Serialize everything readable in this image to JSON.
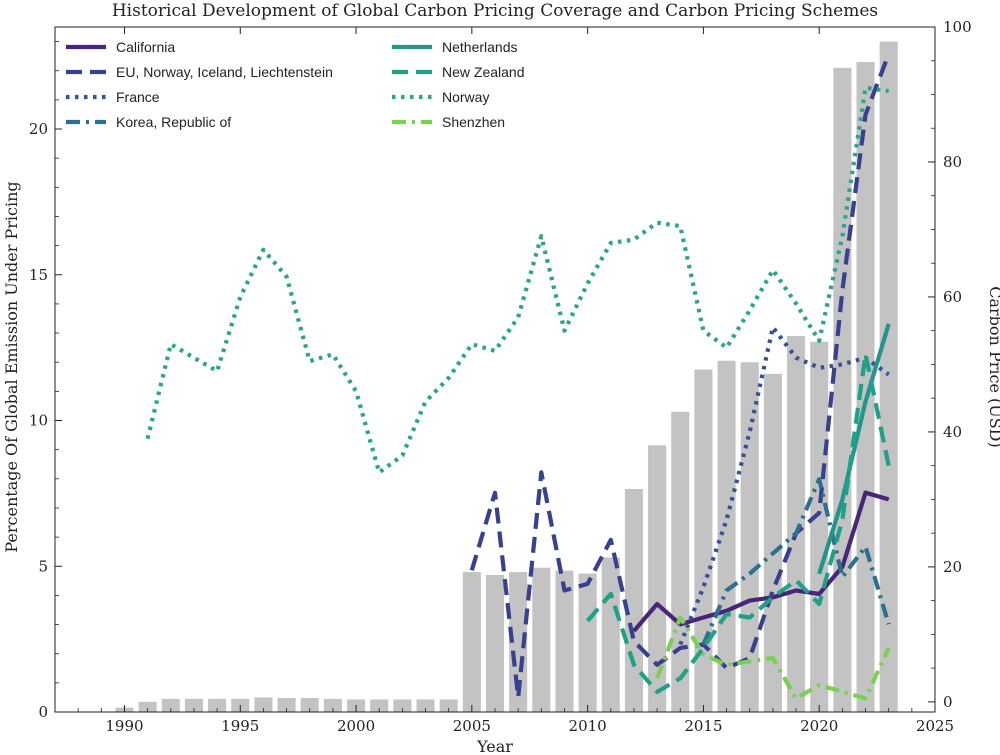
{
  "chart_data": {
    "type": "bar+line",
    "title": "Historical Development of Global Carbon Pricing Coverage and Carbon Pricing Schemes",
    "xlabel": "Year",
    "ylabel_left": "Percentage Of Global Emission Under Pricing",
    "ylabel_right": "Carbon Price (USD)",
    "xlim": [
      1987,
      2025
    ],
    "ylim_left": [
      0,
      23.5
    ],
    "ylim_right": [
      -1.5,
      100
    ],
    "x_ticks": [
      "1990",
      "1995",
      "2000",
      "2005",
      "2010",
      "2015",
      "2020",
      "2025"
    ],
    "y_ticks_left": [
      "0",
      "5",
      "10",
      "15",
      "20"
    ],
    "y_ticks_right": [
      "0",
      "20",
      "40",
      "60",
      "80",
      "100"
    ],
    "legend_position": "top-left",
    "coverage_bars": {
      "years": [
        1990,
        1991,
        1992,
        1993,
        1994,
        1995,
        1996,
        1997,
        1998,
        1999,
        2000,
        2001,
        2002,
        2003,
        2004,
        2005,
        2006,
        2007,
        2008,
        2009,
        2010,
        2011,
        2012,
        2013,
        2014,
        2015,
        2016,
        2017,
        2018,
        2019,
        2020,
        2021,
        2022,
        2023
      ],
      "values": [
        0.15,
        0.35,
        0.45,
        0.45,
        0.45,
        0.45,
        0.5,
        0.48,
        0.48,
        0.45,
        0.43,
        0.43,
        0.43,
        0.43,
        0.43,
        4.8,
        4.7,
        4.8,
        4.95,
        4.85,
        4.75,
        5.3,
        7.65,
        9.15,
        10.3,
        11.75,
        12.05,
        12.0,
        11.6,
        12.9,
        12.7,
        22.1,
        22.3,
        23.0
      ]
    },
    "series": [
      {
        "name": "California",
        "color": "#482576",
        "dash": "solid",
        "years": [
          2012,
          2013,
          2014,
          2015,
          2016,
          2017,
          2018,
          2019,
          2020,
          2021,
          2022,
          2023
        ],
        "values": [
          10.5,
          14.5,
          11.5,
          12.5,
          13.5,
          15.0,
          15.5,
          16.5,
          16.0,
          20.0,
          31.0,
          30.0
        ]
      },
      {
        "name": "EU, Norway, Iceland, Liechtenstein",
        "color": "#39418f",
        "dash": "long-dash",
        "years": [
          2005,
          2006,
          2007,
          2008,
          2009,
          2010,
          2011,
          2012,
          2013,
          2014,
          2015,
          2016,
          2017,
          2018,
          2019,
          2020,
          2021,
          2022,
          2023
        ],
        "values": [
          19.5,
          31.0,
          0.7,
          34.0,
          16.5,
          17.5,
          24.0,
          9.0,
          5.5,
          8.0,
          8.5,
          5.0,
          6.5,
          16.5,
          25.0,
          28.0,
          61.0,
          87.0,
          96.0
        ]
      },
      {
        "name": "France",
        "color": "#3b4e99",
        "dash": "dotted",
        "years": [
          2014,
          2015,
          2016,
          2017,
          2018,
          2019,
          2020,
          2021,
          2022,
          2023
        ],
        "values": [
          8.5,
          17.0,
          27.0,
          40.0,
          55.5,
          51.0,
          49.5,
          50.0,
          51.0,
          48.5
        ]
      },
      {
        "name": "Korea, Republic of",
        "color": "#2c6f8e",
        "dash": "dash-dot",
        "years": [
          2015,
          2016,
          2017,
          2018,
          2019,
          2020,
          2021,
          2022,
          2023
        ],
        "values": [
          8.5,
          16.5,
          19.0,
          22.0,
          25.0,
          33.0,
          18.5,
          23.0,
          11.5
        ]
      },
      {
        "name": "Netherlands",
        "color": "#22968b",
        "dash": "solid",
        "years": [
          2020,
          2021,
          2022,
          2023
        ],
        "values": [
          19.0,
          30.0,
          44.5,
          56.0
        ]
      },
      {
        "name": "New Zealand",
        "color": "#1fa187",
        "dash": "long-dash",
        "years": [
          2010,
          2011,
          2012,
          2013,
          2014,
          2015,
          2016,
          2017,
          2018,
          2019,
          2020,
          2021,
          2022,
          2023
        ],
        "values": [
          12.0,
          16.0,
          5.5,
          1.5,
          3.5,
          8.0,
          13.0,
          12.5,
          15.5,
          18.0,
          14.5,
          27.0,
          51.5,
          35.0
        ]
      },
      {
        "name": "Norway",
        "color": "#2aa58a",
        "dash": "dotted",
        "years": [
          1991,
          1992,
          1993,
          1994,
          1995,
          1996,
          1997,
          1998,
          1999,
          2000,
          2001,
          2002,
          2003,
          2004,
          2005,
          2006,
          2007,
          2008,
          2009,
          2010,
          2011,
          2012,
          2013,
          2014,
          2015,
          2016,
          2017,
          2018,
          2019,
          2020,
          2021,
          2022,
          2023
        ],
        "values": [
          39.0,
          53.0,
          51.0,
          49.0,
          60.0,
          67.0,
          63.0,
          50.5,
          51.5,
          46.0,
          34.0,
          36.5,
          44.5,
          48.0,
          53.0,
          52.0,
          57.0,
          69.0,
          55.0,
          62.0,
          68.0,
          68.5,
          71.0,
          70.5,
          55.0,
          52.5,
          58.0,
          64.0,
          59.0,
          53.5,
          69.0,
          91.0,
          90.5
        ]
      },
      {
        "name": "Shenzhen",
        "color": "#7ad151",
        "dash": "dash-dot",
        "years": [
          2013,
          2014,
          2015,
          2016,
          2017,
          2018,
          2019,
          2020,
          2021,
          2022,
          2023
        ],
        "values": [
          3.5,
          12.5,
          7.0,
          5.5,
          6.0,
          6.5,
          0.5,
          2.5,
          1.5,
          0.5,
          8.0
        ]
      }
    ]
  }
}
